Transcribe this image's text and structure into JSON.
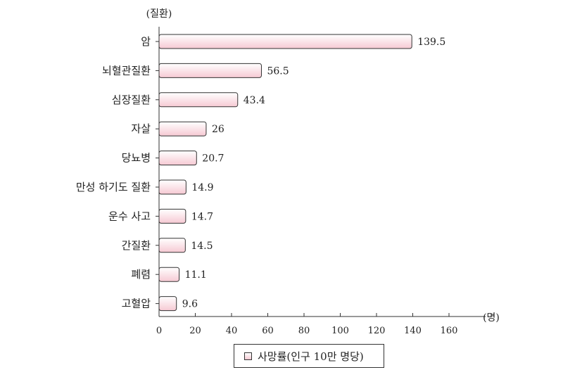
{
  "chart_data": {
    "type": "bar",
    "orientation": "horizontal",
    "y_unit_label": "(질환)",
    "x_unit_label": "(명)",
    "categories": [
      "암",
      "뇌혈관질환",
      "심장질환",
      "자살",
      "당뇨병",
      "만성 하기도 질환",
      "운수 사고",
      "간질환",
      "폐렴",
      "고혈압"
    ],
    "values": [
      139.5,
      56.5,
      43.4,
      26,
      20.7,
      14.9,
      14.7,
      14.5,
      11.1,
      9.6
    ],
    "value_labels": [
      "139.5",
      "56.5",
      "43.4",
      "26",
      "20.7",
      "14.9",
      "14.7",
      "14.5",
      "11.1",
      "9.6"
    ],
    "xlim": [
      0,
      160
    ],
    "xticks": [
      0,
      20,
      40,
      60,
      80,
      100,
      120,
      140,
      160
    ],
    "legend": {
      "position": "bottom-center",
      "entries": [
        "사망률(인구 10만 명당)"
      ]
    },
    "grid": false,
    "colors": {
      "bar_fill_light": "#ffffff",
      "bar_fill_pink": "#f6c9d3",
      "bar_stroke": "#333333"
    }
  }
}
